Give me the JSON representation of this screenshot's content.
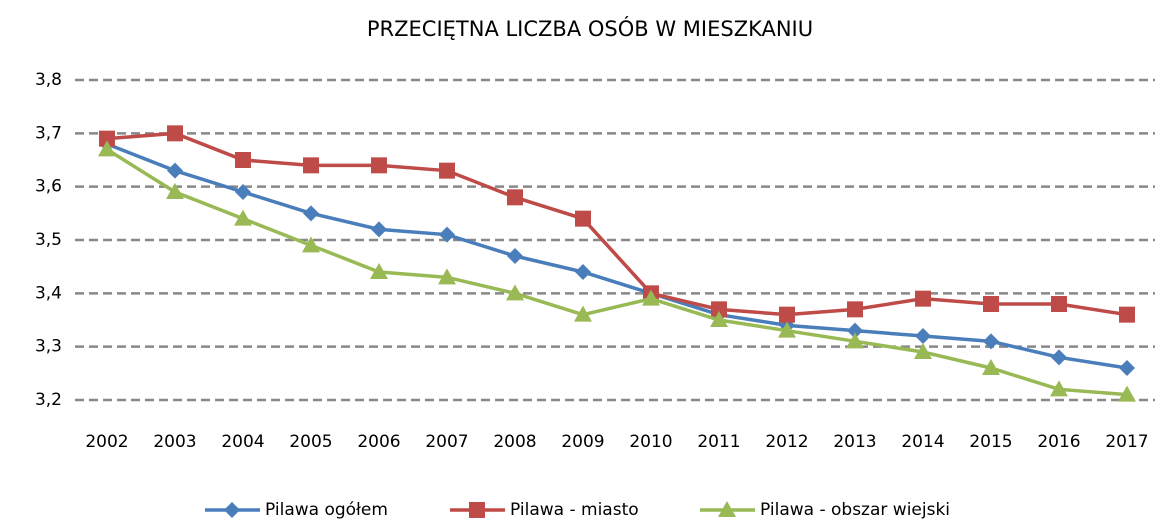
{
  "chart_data": {
    "type": "line",
    "title": "PRZECIĘTNA LICZBA OSÓB W MIESZKANIU",
    "categories": [
      "2002",
      "2003",
      "2004",
      "2005",
      "2006",
      "2007",
      "2008",
      "2009",
      "2010",
      "2011",
      "2012",
      "2013",
      "2014",
      "2015",
      "2016",
      "2017"
    ],
    "series": [
      {
        "name": "Pilawa ogółem",
        "color": "#4a7ebb",
        "marker": "diamond",
        "values": [
          3.68,
          3.63,
          3.59,
          3.55,
          3.52,
          3.51,
          3.47,
          3.44,
          3.4,
          3.36,
          3.34,
          3.33,
          3.32,
          3.31,
          3.28,
          3.26
        ]
      },
      {
        "name": "Pilawa - miasto",
        "color": "#be4b48",
        "marker": "square",
        "values": [
          3.69,
          3.7,
          3.65,
          3.64,
          3.64,
          3.63,
          3.58,
          3.54,
          3.4,
          3.37,
          3.36,
          3.37,
          3.39,
          3.38,
          3.38,
          3.36
        ]
      },
      {
        "name": "Pilawa - obszar wiejski",
        "color": "#98b954",
        "marker": "triangle",
        "values": [
          3.67,
          3.59,
          3.54,
          3.49,
          3.44,
          3.43,
          3.4,
          3.36,
          3.39,
          3.35,
          3.33,
          3.31,
          3.29,
          3.26,
          3.22,
          3.21
        ]
      }
    ],
    "ylim": [
      3.2,
      3.8
    ],
    "yticks": [
      {
        "value": 3.2,
        "label": "3,2"
      },
      {
        "value": 3.3,
        "label": "3,3"
      },
      {
        "value": 3.4,
        "label": "3,4"
      },
      {
        "value": 3.5,
        "label": "3,5"
      },
      {
        "value": 3.6,
        "label": "3,6"
      },
      {
        "value": 3.7,
        "label": "3,7"
      },
      {
        "value": 3.8,
        "label": "3,8"
      }
    ],
    "grid": true,
    "legend": "bottom"
  }
}
